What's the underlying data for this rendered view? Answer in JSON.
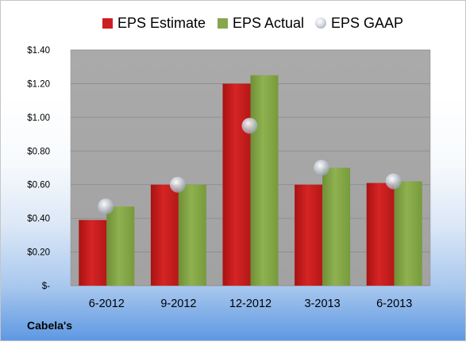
{
  "chart_data": {
    "type": "bar",
    "categories": [
      "6-2012",
      "9-2012",
      "12-2012",
      "3-2013",
      "6-2013"
    ],
    "series": [
      {
        "name": "EPS Estimate",
        "kind": "bar",
        "color": "#cc1f1f",
        "values": [
          0.39,
          0.6,
          1.2,
          0.6,
          0.61
        ]
      },
      {
        "name": "EPS Actual",
        "kind": "bar",
        "color": "#86a74a",
        "values": [
          0.47,
          0.6,
          1.25,
          0.7,
          0.62
        ]
      },
      {
        "name": "EPS GAAP",
        "kind": "marker",
        "color": "#c0c5ce",
        "values": [
          0.47,
          0.6,
          0.95,
          0.7,
          0.62
        ]
      }
    ],
    "ylim": [
      0,
      1.4
    ],
    "yticks": [
      0,
      0.2,
      0.4,
      0.6,
      0.8,
      1.0,
      1.2,
      1.4
    ],
    "ytick_labels": [
      "$-",
      "$0.20",
      "$0.40",
      "$0.60",
      "$0.80",
      "$1.00",
      "$1.20",
      "$1.40"
    ],
    "grid": true,
    "legend_position": "top",
    "plot_background": "#a6a6a6"
  },
  "footer": {
    "company": "Cabela's"
  }
}
